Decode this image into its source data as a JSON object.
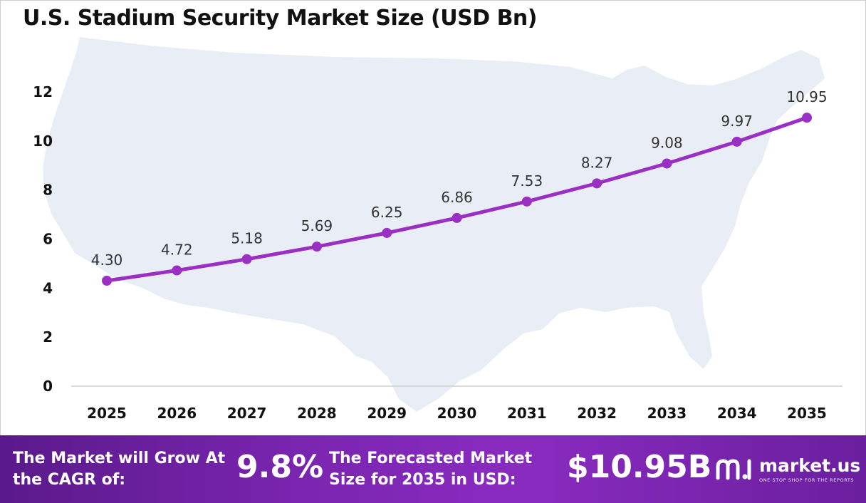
{
  "title": "U.S. Stadium Security Market Size (USD Bn)",
  "chart_data": {
    "type": "line",
    "title": "U.S. Stadium Security Market Size (USD Bn)",
    "categories": [
      "2025",
      "2026",
      "2027",
      "2028",
      "2029",
      "2030",
      "2031",
      "2032",
      "2033",
      "2034",
      "2035"
    ],
    "series": [
      {
        "values": [
          4.3,
          4.72,
          5.18,
          5.69,
          6.25,
          6.86,
          7.53,
          8.27,
          9.08,
          9.97,
          10.95
        ],
        "labels": [
          "4.30",
          "4.72",
          "5.18",
          "5.69",
          "6.25",
          "6.86",
          "7.53",
          "8.27",
          "9.08",
          "9.97",
          "10.95"
        ],
        "color": "#9b2fc4"
      }
    ],
    "ylim": [
      0,
      12
    ],
    "yticks": [
      "0",
      "2",
      "4",
      "6",
      "8",
      "10",
      "12"
    ],
    "xlabel": "",
    "ylabel": "",
    "grid": false,
    "background": "U.S. map silhouette",
    "background_color": "#e9edf5"
  },
  "footer": {
    "cagr_label": "The Market will Grow At the CAGR of:",
    "cagr_value": "9.8%",
    "forecast_label": "The Forecasted Market Size for 2035 in USD:",
    "forecast_value": "$10.95B",
    "brand_name": "market.us",
    "brand_tagline": "ONE STOP SHOP FOR THE REPORTS",
    "brand_icon": "market-us-logo-icon",
    "colors": {
      "gradient_start": "#5a1a8a",
      "gradient_mid": "#8a2bc0",
      "gradient_end": "#6a1f9e",
      "text": "#ffffff"
    }
  }
}
